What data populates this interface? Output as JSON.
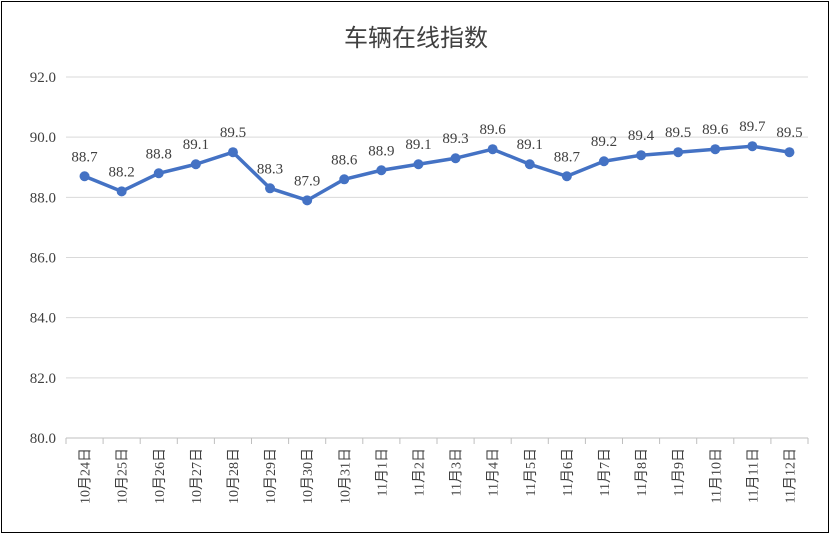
{
  "chart_data": {
    "type": "line",
    "title": "车辆在线指数",
    "xlabel": "",
    "ylabel": "",
    "ylim": [
      80.0,
      92.0
    ],
    "yticks": [
      "80.0",
      "82.0",
      "84.0",
      "86.0",
      "88.0",
      "90.0",
      "92.0"
    ],
    "grid": true,
    "legend": "none",
    "categories": [
      "10月24日",
      "10月25日",
      "10月26日",
      "10月27日",
      "10月28日",
      "10月29日",
      "10月30日",
      "10月31日",
      "11月1日",
      "11月2日",
      "11月3日",
      "11月4日",
      "11月5日",
      "11月6日",
      "11月7日",
      "11月8日",
      "11月9日",
      "11月10日",
      "11月11日",
      "11月12日"
    ],
    "values": [
      88.7,
      88.2,
      88.8,
      89.1,
      89.5,
      88.3,
      87.9,
      88.6,
      88.9,
      89.1,
      89.3,
      89.6,
      89.1,
      88.7,
      89.2,
      89.4,
      89.5,
      89.6,
      89.7,
      89.5
    ],
    "colors": {
      "line": "#4472C4",
      "grid": "#D9D9D9",
      "text": "#404040"
    }
  }
}
